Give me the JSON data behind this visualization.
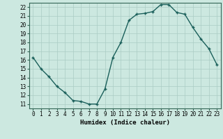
{
  "x": [
    0,
    1,
    2,
    3,
    4,
    5,
    6,
    7,
    8,
    9,
    10,
    11,
    12,
    13,
    14,
    15,
    16,
    17,
    18,
    19,
    20,
    21,
    22,
    23
  ],
  "y": [
    16.3,
    15.0,
    14.1,
    13.0,
    12.3,
    11.4,
    11.3,
    11.0,
    11.0,
    12.7,
    16.3,
    18.0,
    20.5,
    21.2,
    21.3,
    21.5,
    22.3,
    22.3,
    21.4,
    21.2,
    19.7,
    18.4,
    17.3,
    15.5
  ],
  "xlabel": "Humidex (Indice chaleur)",
  "ylim": [
    10.5,
    22.5
  ],
  "xlim": [
    -0.5,
    23.5
  ],
  "yticks": [
    11,
    12,
    13,
    14,
    15,
    16,
    17,
    18,
    19,
    20,
    21,
    22
  ],
  "xticks": [
    0,
    1,
    2,
    3,
    4,
    5,
    6,
    7,
    8,
    9,
    10,
    11,
    12,
    13,
    14,
    15,
    16,
    17,
    18,
    19,
    20,
    21,
    22,
    23
  ],
  "xtick_labels": [
    "0",
    "1",
    "2",
    "3",
    "4",
    "5",
    "6",
    "7",
    "8",
    "9",
    "10",
    "11",
    "12",
    "13",
    "14",
    "15",
    "16",
    "17",
    "18",
    "19",
    "20",
    "21",
    "22",
    "23"
  ],
  "line_color": "#1a5f5a",
  "marker": "+",
  "marker_size": 3,
  "bg_color": "#cce8e0",
  "grid_color": "#aaccC4",
  "xlabel_fontsize": 6.5,
  "tick_fontsize": 5.5
}
